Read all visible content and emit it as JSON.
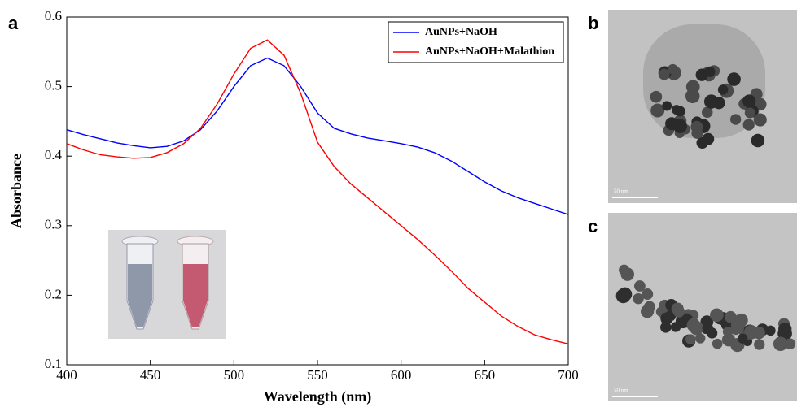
{
  "chart_data": {
    "type": "line",
    "x_label": "Wavelength (nm)",
    "y_label": "Absorbance",
    "x": [
      400,
      410,
      420,
      430,
      440,
      450,
      460,
      470,
      480,
      490,
      500,
      510,
      520,
      530,
      540,
      550,
      560,
      570,
      580,
      590,
      600,
      610,
      620,
      630,
      640,
      650,
      660,
      670,
      680,
      690,
      700
    ],
    "series": [
      {
        "name": "AuNPs+NaOH",
        "color": "#0000ff",
        "values": [
          0.438,
          0.431,
          0.425,
          0.419,
          0.415,
          0.412,
          0.414,
          0.422,
          0.438,
          0.465,
          0.5,
          0.53,
          0.541,
          0.53,
          0.5,
          0.462,
          0.44,
          0.432,
          0.426,
          0.422,
          0.418,
          0.413,
          0.405,
          0.393,
          0.378,
          0.363,
          0.35,
          0.34,
          0.332,
          0.324,
          0.316
        ]
      },
      {
        "name": "AuNPs+NaOH+Malathion",
        "color": "#ff0000",
        "values": [
          0.418,
          0.409,
          0.402,
          0.399,
          0.397,
          0.398,
          0.405,
          0.418,
          0.44,
          0.475,
          0.518,
          0.555,
          0.567,
          0.545,
          0.49,
          0.42,
          0.385,
          0.36,
          0.34,
          0.32,
          0.3,
          0.28,
          0.258,
          0.235,
          0.21,
          0.19,
          0.17,
          0.155,
          0.143,
          0.136,
          0.13
        ]
      }
    ],
    "xlim": [
      400,
      700
    ],
    "xticks": [
      400,
      450,
      500,
      550,
      600,
      650,
      700
    ],
    "ylim": [
      0.1,
      0.6
    ],
    "yticks": [
      0.1,
      0.2,
      0.3,
      0.4,
      0.5,
      0.6
    ],
    "legend": "upper right"
  },
  "panel_labels": [
    "a",
    "b",
    "c"
  ],
  "scale_bars": [
    "50 nm",
    "50 nm"
  ]
}
